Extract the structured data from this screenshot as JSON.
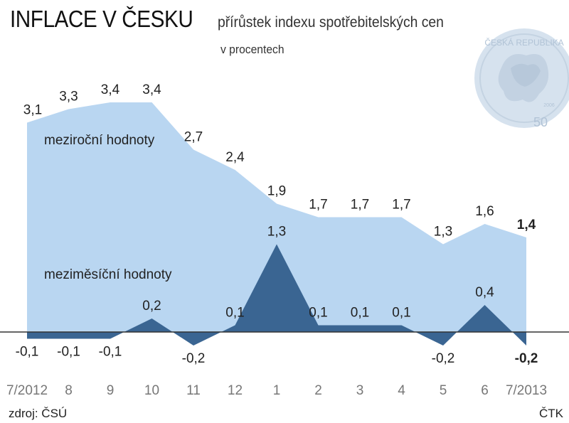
{
  "header": {
    "title": "INFLACE V ČESKU",
    "subtitle": "přírůstek indexu spotřebitelských cen",
    "unit": "v procentech"
  },
  "footer": {
    "source": "zdroj: ČSÚ",
    "credit": "ČTK"
  },
  "colors": {
    "yoy_fill": "#b9d6f1",
    "mom_fill": "#3a6592",
    "baseline": "#333333"
  },
  "coin": {
    "inscription": "ČESKÁ REPUBLIKA",
    "value": "50",
    "year": "2006"
  },
  "chart_data": {
    "type": "area",
    "categories": [
      "7/2012",
      "8",
      "9",
      "10",
      "11",
      "12",
      "1",
      "2",
      "3",
      "4",
      "5",
      "6",
      "7/2013"
    ],
    "ylim": [
      -0.4,
      3.6
    ],
    "series": [
      {
        "name": "meziroční hodnoty",
        "values": [
          3.1,
          3.3,
          3.4,
          3.4,
          2.7,
          2.4,
          1.9,
          1.7,
          1.7,
          1.7,
          1.3,
          1.6,
          1.4
        ],
        "labels": [
          "3,1",
          "3,3",
          "3,4",
          "3,4",
          "2,7",
          "2,4",
          "1,9",
          "1,7",
          "1,7",
          "1,7",
          "1,3",
          "1,6",
          "1,4"
        ]
      },
      {
        "name": "meziměsíční hodnoty",
        "values": [
          -0.1,
          -0.1,
          -0.1,
          0.2,
          -0.2,
          0.1,
          1.3,
          0.1,
          0.1,
          0.1,
          -0.2,
          0.4,
          -0.2
        ],
        "labels": [
          "-0,1",
          "-0,1",
          "-0,1",
          "0,2",
          "-0,2",
          "0,1",
          "1,3",
          "0,1",
          "0,1",
          "0,1",
          "-0,2",
          "0,4",
          "-0,2"
        ]
      }
    ]
  }
}
